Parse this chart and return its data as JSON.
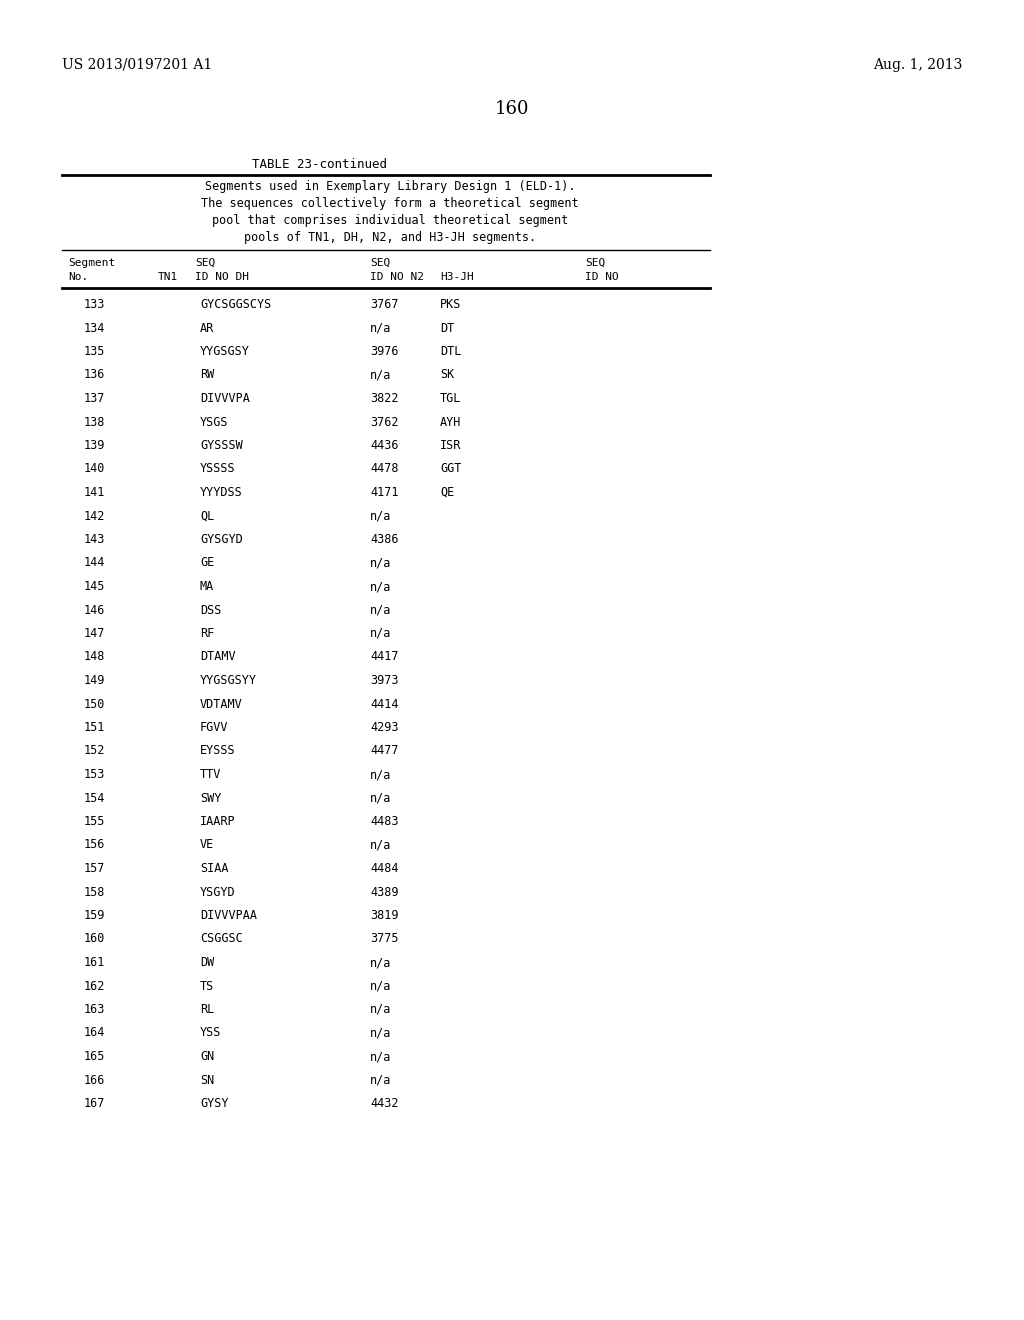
{
  "patent_number": "US 2013/0197201 A1",
  "date": "Aug. 1, 2013",
  "page_number": "160",
  "table_title": "TABLE 23-continued",
  "table_caption_lines": [
    "Segments used in Exemplary Library Design 1 (ELD-1).",
    "The sequences collectively form a theoretical segment",
    "pool that comprises individual theoretical segment",
    "pools of TN1, DH, N2, and H3-JH segments."
  ],
  "rows": [
    [
      "133",
      "GYCSGGSCYS",
      "3767",
      "PKS",
      ""
    ],
    [
      "134",
      "AR",
      "n/a",
      "DT",
      ""
    ],
    [
      "135",
      "YYGSGSY",
      "3976",
      "DTL",
      ""
    ],
    [
      "136",
      "RW",
      "n/a",
      "SK",
      ""
    ],
    [
      "137",
      "DIVVVPA",
      "3822",
      "TGL",
      ""
    ],
    [
      "138",
      "YSGS",
      "3762",
      "AYH",
      ""
    ],
    [
      "139",
      "GYSSSW",
      "4436",
      "ISR",
      ""
    ],
    [
      "140",
      "YSSSS",
      "4478",
      "GGT",
      ""
    ],
    [
      "141",
      "YYYDSS",
      "4171",
      "QE",
      ""
    ],
    [
      "142",
      "QL",
      "n/a",
      "",
      ""
    ],
    [
      "143",
      "GYSGYD",
      "4386",
      "",
      ""
    ],
    [
      "144",
      "GE",
      "n/a",
      "",
      ""
    ],
    [
      "145",
      "MA",
      "n/a",
      "",
      ""
    ],
    [
      "146",
      "DSS",
      "n/a",
      "",
      ""
    ],
    [
      "147",
      "RF",
      "n/a",
      "",
      ""
    ],
    [
      "148",
      "DTAMV",
      "4417",
      "",
      ""
    ],
    [
      "149",
      "YYGSGSYY",
      "3973",
      "",
      ""
    ],
    [
      "150",
      "VDTAMV",
      "4414",
      "",
      ""
    ],
    [
      "151",
      "FGVV",
      "4293",
      "",
      ""
    ],
    [
      "152",
      "EYSSS",
      "4477",
      "",
      ""
    ],
    [
      "153",
      "TTV",
      "n/a",
      "",
      ""
    ],
    [
      "154",
      "SWY",
      "n/a",
      "",
      ""
    ],
    [
      "155",
      "IAARP",
      "4483",
      "",
      ""
    ],
    [
      "156",
      "VE",
      "n/a",
      "",
      ""
    ],
    [
      "157",
      "SIAA",
      "4484",
      "",
      ""
    ],
    [
      "158",
      "YSGYD",
      "4389",
      "",
      ""
    ],
    [
      "159",
      "DIVVVPAA",
      "3819",
      "",
      ""
    ],
    [
      "160",
      "CSGGSC",
      "3775",
      "",
      ""
    ],
    [
      "161",
      "DW",
      "n/a",
      "",
      ""
    ],
    [
      "162",
      "TS",
      "n/a",
      "",
      ""
    ],
    [
      "163",
      "RL",
      "n/a",
      "",
      ""
    ],
    [
      "164",
      "YSS",
      "n/a",
      "",
      ""
    ],
    [
      "165",
      "GN",
      "n/a",
      "",
      ""
    ],
    [
      "166",
      "SN",
      "n/a",
      "",
      ""
    ],
    [
      "167",
      "GYSY",
      "4432",
      "",
      ""
    ]
  ],
  "background_color": "#ffffff",
  "text_color": "#000000"
}
